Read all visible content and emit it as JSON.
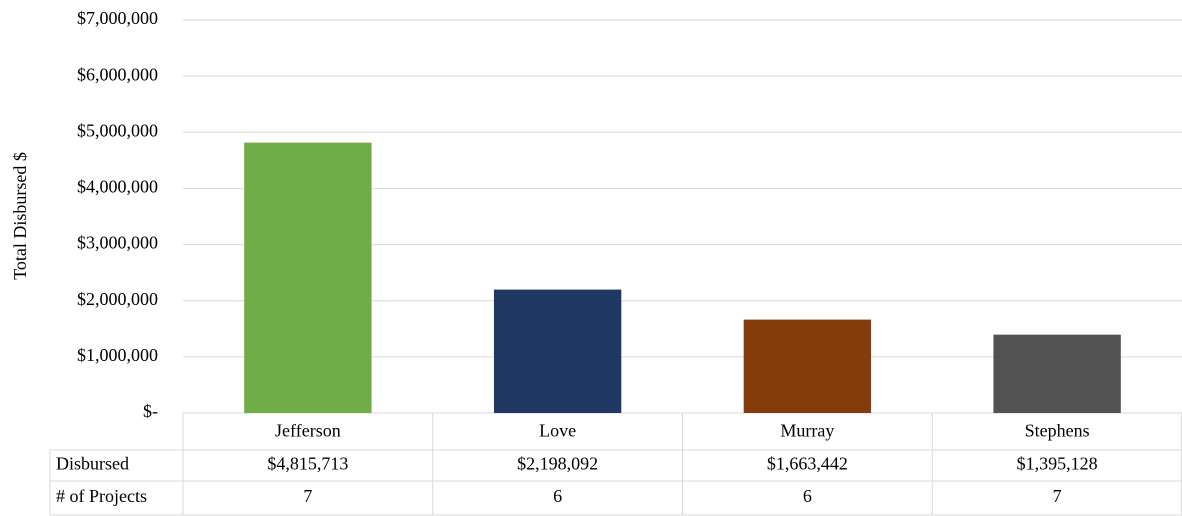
{
  "chart_data": {
    "type": "bar",
    "y_label": "Total Disbursed $",
    "categories": [
      "Jefferson",
      "Love",
      "Murray",
      "Stephens"
    ],
    "values": [
      4815713,
      2198092,
      1663442,
      1395128
    ],
    "value_labels": [
      "$4,815,713",
      "$2,198,092",
      "$1,663,442",
      "$1,395,128"
    ],
    "colors": [
      "#70ad47",
      "#203864",
      "#843c0c",
      "#525252"
    ],
    "ylim": [
      0,
      7000000
    ],
    "yticks": [
      {
        "value": 0,
        "label": "$-"
      },
      {
        "value": 1000000,
        "label": "$1,000,000"
      },
      {
        "value": 2000000,
        "label": "$2,000,000"
      },
      {
        "value": 3000000,
        "label": "$3,000,000"
      },
      {
        "value": 4000000,
        "label": "$4,000,000"
      },
      {
        "value": 5000000,
        "label": "$5,000,000"
      },
      {
        "value": 6000000,
        "label": "$6,000,000"
      },
      {
        "value": 7000000,
        "label": "$7,000,000"
      }
    ],
    "grid": true,
    "data_table": {
      "row_labels": [
        "Disbursed",
        "# of Projects"
      ],
      "projects": [
        7,
        6,
        6,
        7
      ]
    }
  }
}
